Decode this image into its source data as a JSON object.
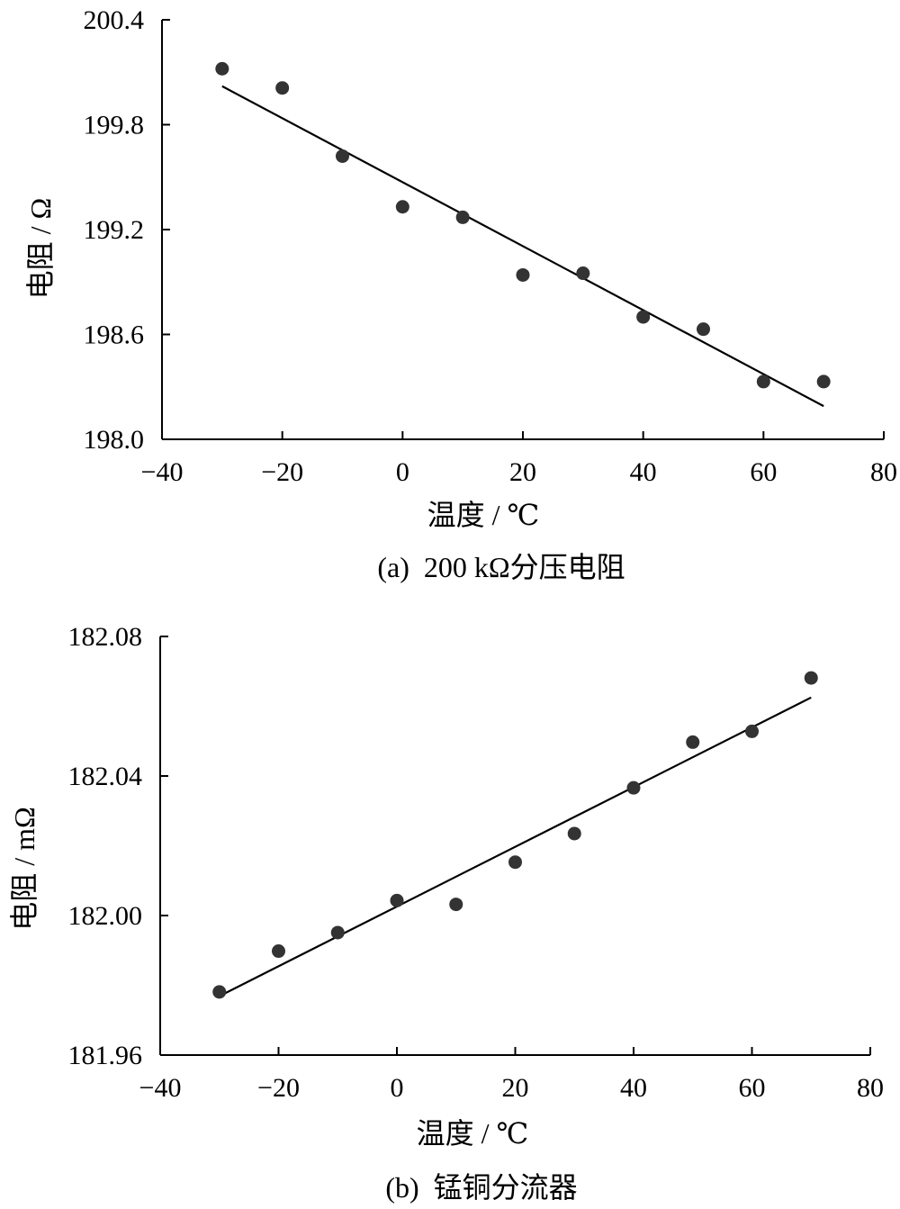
{
  "chart_data": [
    {
      "type": "scatter",
      "caption": "(a)  200 kΩ分压电阻",
      "xlabel": "温度 / ℃",
      "ylabel": "电阻 / Ω",
      "xlim": [
        -40,
        80
      ],
      "ylim": [
        198.0,
        200.4
      ],
      "xticks": [
        -40,
        -20,
        0,
        20,
        40,
        60,
        80
      ],
      "xtick_labels": [
        "−40",
        "−20",
        "0",
        "20",
        "40",
        "60",
        "80"
      ],
      "yticks": [
        198.0,
        198.6,
        199.2,
        199.8,
        200.4
      ],
      "ytick_labels": [
        "198.0",
        "198.6",
        "199.2",
        "199.8",
        "200.4"
      ],
      "grid": false,
      "points": {
        "x": [
          -30,
          -20,
          -10,
          0,
          10,
          20,
          30,
          40,
          50,
          60,
          70
        ],
        "y": [
          200.12,
          200.01,
          199.62,
          199.33,
          199.27,
          198.94,
          198.95,
          198.7,
          198.63,
          198.33,
          198.33
        ]
      },
      "fit_line": {
        "x": [
          -30,
          70
        ],
        "y": [
          200.02,
          198.19
        ]
      }
    },
    {
      "type": "scatter",
      "caption": "(b)  锰铜分流器",
      "xlabel": "温度 / ℃",
      "ylabel": "电阻 / mΩ",
      "xlim": [
        -40,
        80
      ],
      "ylim": [
        181.96,
        182.08
      ],
      "xticks": [
        -40,
        -20,
        0,
        20,
        40,
        60,
        80
      ],
      "xtick_labels": [
        "−40",
        "−20",
        "0",
        "20",
        "40",
        "60",
        "80"
      ],
      "yticks": [
        181.96,
        182.0,
        182.04,
        182.08
      ],
      "ytick_labels": [
        "181.96",
        "182.00",
        "182.04",
        "182.08"
      ],
      "grid": false,
      "points": {
        "x": [
          -30,
          -20,
          -10,
          0,
          10,
          20,
          30,
          40,
          50,
          60,
          70
        ],
        "y": [
          181.9781,
          181.9898,
          181.9951,
          182.0043,
          182.0032,
          182.0153,
          182.0235,
          182.0366,
          182.0497,
          182.0528,
          182.0681
        ]
      },
      "fit_line": {
        "x": [
          -30,
          70
        ],
        "y": [
          181.9769,
          182.0625
        ]
      }
    }
  ],
  "colors": {
    "marker": "#333333",
    "line": "#000000"
  }
}
